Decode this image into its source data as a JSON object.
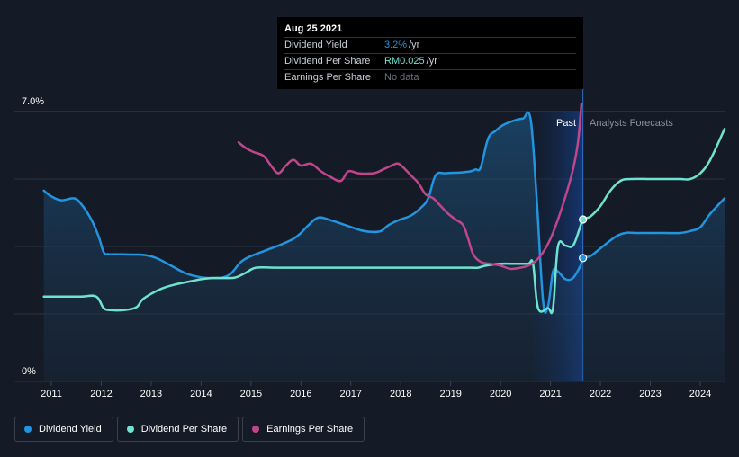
{
  "tooltip": {
    "date": "Aug 25 2021",
    "rows": [
      {
        "label": "Dividend Yield",
        "value": "3.2%",
        "unit": "/yr"
      },
      {
        "label": "Dividend Per Share",
        "value": "RM0.025",
        "unit": "/yr"
      },
      {
        "label": "Earnings Per Share",
        "value": "No data",
        "unit": ""
      }
    ]
  },
  "chart_data": {
    "type": "line",
    "y_max_label": "7.0%",
    "y_min_label": "0%",
    "ylim": [
      0,
      7.0
    ],
    "xlim": [
      2010.85,
      2024.5
    ],
    "x_ticks": [
      "2011",
      "2012",
      "2013",
      "2014",
      "2015",
      "2016",
      "2017",
      "2018",
      "2019",
      "2020",
      "2021",
      "2022",
      "2023",
      "2024"
    ],
    "past_label": "Past",
    "forecast_label": "Analysts Forecasts",
    "forecast_start": 2021.65,
    "colors": {
      "yield": "#2394df",
      "dps": "#6fe3d0",
      "eps": "#c0468a",
      "grid": "#2a313d",
      "bg": "#151b26"
    },
    "series": [
      {
        "name": "Dividend Yield",
        "x": [
          2010.85,
          2011.0,
          2011.2,
          2011.45,
          2011.6,
          2011.8,
          2011.95,
          2012.05,
          2012.15,
          2012.3,
          2012.6,
          2012.85,
          2013.1,
          2013.4,
          2013.7,
          2014.0,
          2014.2,
          2014.35,
          2014.45,
          2014.6,
          2014.8,
          2015.0,
          2015.3,
          2015.6,
          2015.85,
          2016.0,
          2016.15,
          2016.35,
          2016.6,
          2016.9,
          2017.2,
          2017.4,
          2017.6,
          2017.75,
          2017.95,
          2018.2,
          2018.4,
          2018.55,
          2018.7,
          2018.9,
          2019.2,
          2019.4,
          2019.5,
          2019.6,
          2019.75,
          2019.9,
          2020.05,
          2020.3,
          2020.45,
          2020.6,
          2020.72,
          2020.85,
          2020.95,
          2021.05,
          2021.15,
          2021.3,
          2021.45,
          2021.6,
          2021.65,
          2021.8,
          2022.0,
          2022.3,
          2022.5,
          2022.7,
          2023.0,
          2023.3,
          2023.6,
          2023.8,
          2024.0,
          2024.2,
          2024.5
        ],
        "values": [
          4.95,
          4.8,
          4.7,
          4.75,
          4.6,
          4.2,
          3.75,
          3.35,
          3.3,
          3.3,
          3.29,
          3.28,
          3.2,
          3.0,
          2.8,
          2.7,
          2.68,
          2.68,
          2.7,
          2.8,
          3.1,
          3.25,
          3.4,
          3.55,
          3.7,
          3.85,
          4.05,
          4.25,
          4.18,
          4.05,
          3.92,
          3.88,
          3.9,
          4.05,
          4.18,
          4.3,
          4.5,
          4.75,
          5.35,
          5.4,
          5.42,
          5.45,
          5.5,
          5.55,
          6.3,
          6.5,
          6.65,
          6.78,
          6.82,
          6.82,
          4.8,
          2.1,
          1.95,
          2.85,
          2.85,
          2.65,
          2.68,
          3.0,
          3.2,
          3.25,
          3.45,
          3.75,
          3.85,
          3.85,
          3.85,
          3.85,
          3.85,
          3.9,
          4.0,
          4.35,
          4.75
        ]
      },
      {
        "name": "Dividend Per Share",
        "x": [
          2010.85,
          2011.2,
          2011.6,
          2011.9,
          2012.05,
          2012.2,
          2012.45,
          2012.7,
          2012.85,
          2013.2,
          2013.5,
          2013.8,
          2014.0,
          2014.2,
          2014.4,
          2014.55,
          2014.7,
          2014.9,
          2015.1,
          2015.5,
          2016.0,
          2016.5,
          2017.0,
          2017.5,
          2018.0,
          2018.5,
          2019.0,
          2019.4,
          2019.55,
          2019.7,
          2020.0,
          2020.3,
          2020.55,
          2020.65,
          2020.75,
          2020.95,
          2021.05,
          2021.15,
          2021.3,
          2021.45,
          2021.58,
          2021.65,
          2021.8,
          2022.0,
          2022.2,
          2022.4,
          2022.6,
          2023.0,
          2023.3,
          2023.6,
          2023.8,
          2024.0,
          2024.2,
          2024.5
        ],
        "values": [
          2.2,
          2.2,
          2.2,
          2.2,
          1.9,
          1.85,
          1.85,
          1.92,
          2.15,
          2.4,
          2.52,
          2.6,
          2.65,
          2.68,
          2.68,
          2.68,
          2.7,
          2.82,
          2.95,
          2.95,
          2.95,
          2.95,
          2.95,
          2.95,
          2.95,
          2.95,
          2.95,
          2.95,
          2.95,
          3.0,
          3.05,
          3.05,
          3.05,
          3.05,
          1.9,
          1.9,
          1.9,
          3.5,
          3.52,
          3.52,
          3.95,
          4.2,
          4.28,
          4.55,
          4.95,
          5.2,
          5.25,
          5.25,
          5.25,
          5.25,
          5.25,
          5.4,
          5.75,
          6.55
        ]
      },
      {
        "name": "Earnings Per Share",
        "x": [
          2014.75,
          2014.9,
          2015.05,
          2015.25,
          2015.4,
          2015.55,
          2015.7,
          2015.85,
          2016.0,
          2016.2,
          2016.4,
          2016.6,
          2016.8,
          2016.95,
          2017.15,
          2017.45,
          2017.65,
          2017.85,
          2017.95,
          2018.05,
          2018.2,
          2018.35,
          2018.5,
          2018.65,
          2018.8,
          2018.95,
          2019.1,
          2019.25,
          2019.35,
          2019.45,
          2019.6,
          2019.8,
          2020.0,
          2020.2,
          2020.4,
          2020.55,
          2020.7,
          2020.85,
          2021.0,
          2021.15,
          2021.3,
          2021.45,
          2021.55,
          2021.62
        ],
        "values": [
          6.2,
          6.05,
          5.95,
          5.85,
          5.6,
          5.4,
          5.6,
          5.75,
          5.6,
          5.65,
          5.45,
          5.3,
          5.2,
          5.45,
          5.4,
          5.4,
          5.5,
          5.62,
          5.65,
          5.55,
          5.35,
          5.15,
          4.85,
          4.75,
          4.55,
          4.35,
          4.2,
          4.05,
          3.7,
          3.3,
          3.1,
          3.05,
          3.0,
          2.92,
          2.95,
          3.0,
          3.12,
          3.35,
          3.7,
          4.2,
          4.8,
          5.5,
          6.2,
          7.2
        ]
      }
    ],
    "markers": [
      {
        "series": "Dividend Yield",
        "x": 2021.65,
        "value": 3.2
      },
      {
        "series": "Dividend Per Share",
        "x": 2021.65,
        "value": 4.2
      }
    ]
  },
  "legend": [
    {
      "label": "Dividend Yield",
      "color": "#2394df"
    },
    {
      "label": "Dividend Per Share",
      "color": "#6fe3d0"
    },
    {
      "label": "Earnings Per Share",
      "color": "#c0468a"
    }
  ]
}
